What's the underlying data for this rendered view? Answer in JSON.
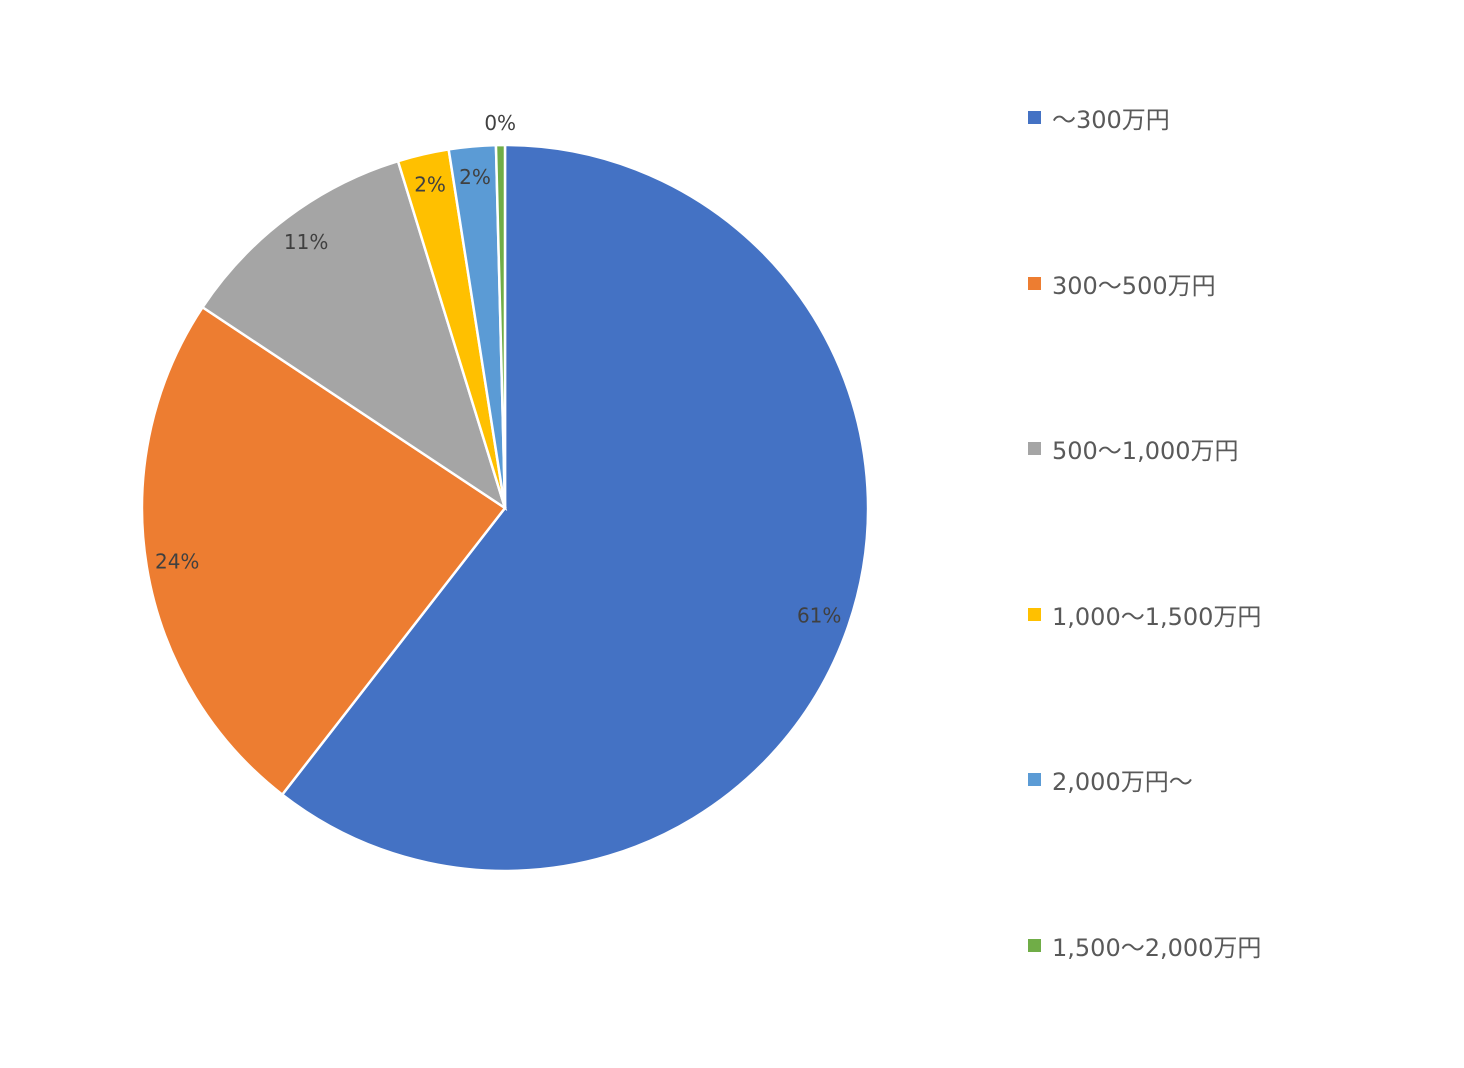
{
  "chart_data": {
    "type": "pie",
    "title": "",
    "start_angle_deg": 0,
    "direction": "clockwise",
    "legend_position": "right",
    "slices": [
      {
        "label": "～300万円",
        "value": 61,
        "display": "61%",
        "color": "#4472C4"
      },
      {
        "label": "300～500万円",
        "value": 24,
        "display": "24%",
        "color": "#ED7D31"
      },
      {
        "label": "500～1,000万円",
        "value": 11,
        "display": "11%",
        "color": "#A5A5A5"
      },
      {
        "label": "1,000～1,500万円",
        "value": 2.3,
        "display": "2%",
        "color": "#FFC000"
      },
      {
        "label": "2,000万円～",
        "value": 2.1,
        "display": "2%",
        "color": "#5B9BD5"
      },
      {
        "label": "1,500～2,000万円",
        "value": 0.4,
        "display": "0%",
        "color": "#70AD47"
      }
    ]
  }
}
